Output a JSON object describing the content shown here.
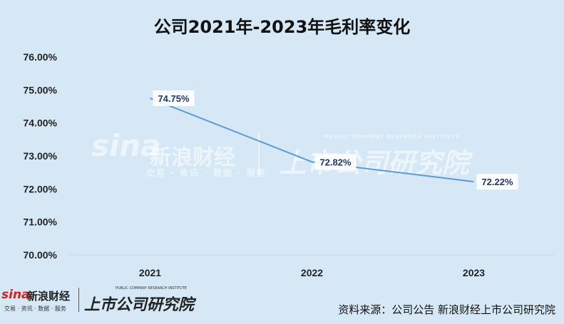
{
  "chart_data": {
    "type": "line",
    "title": "公司2021年-2023年毛利率变化",
    "categories": [
      "2021",
      "2022",
      "2023"
    ],
    "series": [
      {
        "values": [
          74.75,
          72.82,
          72.22
        ]
      }
    ],
    "data_labels": [
      "74.75%",
      "72.82%",
      "72.22%"
    ],
    "ylim": [
      70,
      76
    ],
    "yticks": [
      "70.00%",
      "71.00%",
      "72.00%",
      "73.00%",
      "74.00%",
      "75.00%",
      "76.00%"
    ],
    "grid": false,
    "legend": "none",
    "line_color": "#5b9bd5"
  },
  "watermark": {
    "brand": "sina",
    "cn_name": "新浪财经",
    "services": "交易 · 资讯 · 数据 · 服务",
    "institute": "上市公司研究院",
    "institute_en": "PUBLIC COMPANY RESEARCH INSTITUTE"
  },
  "footer": {
    "brand": "sina",
    "cn_name": "新浪财经",
    "services": "交易 · 资讯 · 数据 · 服务",
    "institute": "上市公司研究院",
    "institute_en": "PUBLIC COMPANY RESEARCH INSTITUTE",
    "source": "资料来源：公司公告 新浪财经上市公司研究院"
  }
}
